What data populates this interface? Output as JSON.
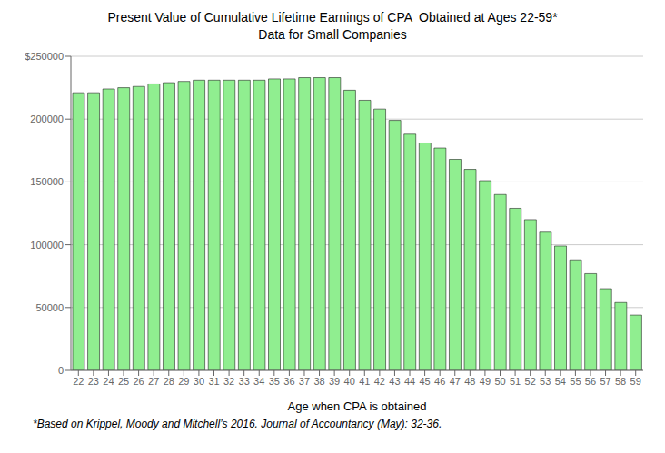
{
  "chart_data": {
    "type": "bar",
    "title": "Present Value of Cumulative Lifetime Earnings of CPA  Obtained at Ages 22-59*",
    "subtitle": "Data for Small Companies",
    "xlabel": "Age when CPA is obtained",
    "footnote": "*Based on Krippel, Moody and Mitchell’s 2016. Journal of Accountancy (May): 32-36.",
    "categories": [
      "22",
      "23",
      "24",
      "25",
      "26",
      "27",
      "28",
      "29",
      "30",
      "31",
      "32",
      "33",
      "34",
      "35",
      "36",
      "37",
      "38",
      "39",
      "40",
      "41",
      "42",
      "43",
      "44",
      "45",
      "46",
      "47",
      "48",
      "49",
      "50",
      "51",
      "52",
      "53",
      "54",
      "55",
      "56",
      "57",
      "58",
      "59"
    ],
    "values": [
      221000,
      221000,
      224000,
      225000,
      226000,
      228000,
      229000,
      230000,
      231000,
      231000,
      231000,
      231000,
      231000,
      232000,
      232000,
      233000,
      233000,
      233000,
      223000,
      215000,
      208000,
      199000,
      188000,
      181000,
      177000,
      168000,
      160000,
      151000,
      140000,
      129000,
      120000,
      110000,
      99000,
      88000,
      77000,
      65000,
      54000,
      44000
    ],
    "color": "#90EE90",
    "ylim": [
      0,
      250000
    ],
    "yticks": [
      0,
      50000,
      100000,
      150000,
      200000,
      {
        "value": 250000,
        "label": "$250000"
      }
    ],
    "grid": true
  }
}
